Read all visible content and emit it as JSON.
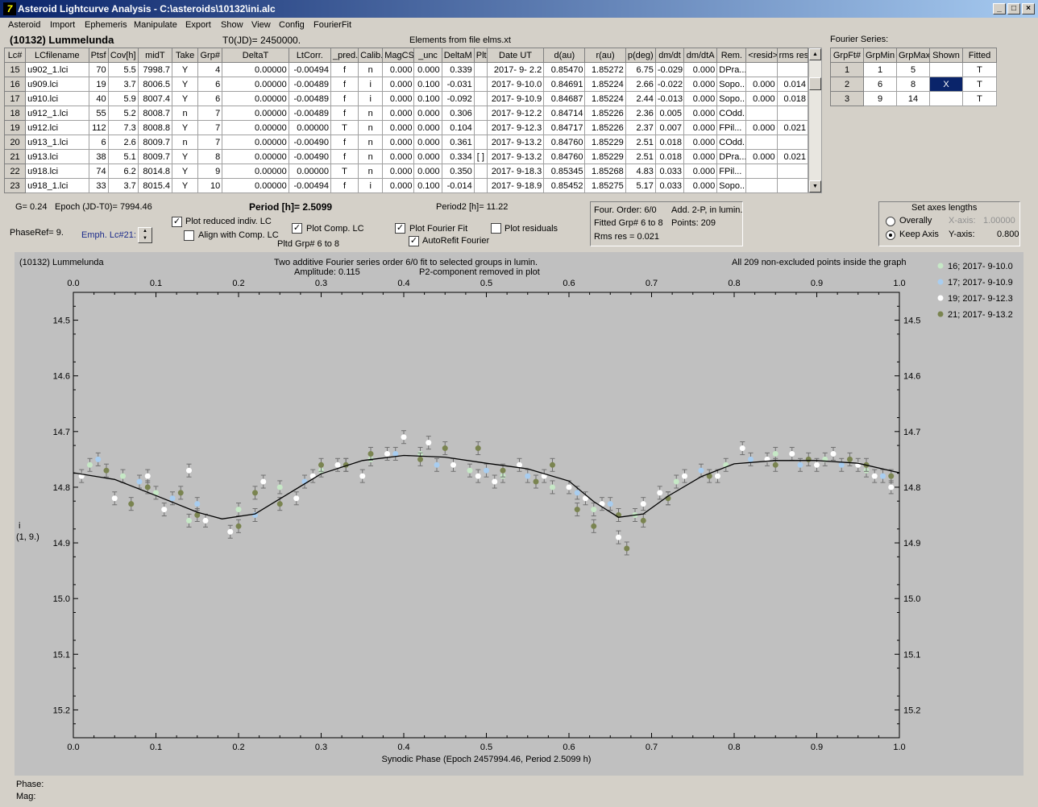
{
  "window": {
    "title": "Asteroid Lightcurve Analysis - C:\\asteroids\\10132\\ini.alc",
    "icon": "7"
  },
  "menu": [
    "Asteroid",
    "Import",
    "Ephemeris",
    "Manipulate",
    "Export",
    "Show",
    "View",
    "Config",
    "FourierFit"
  ],
  "header": {
    "asteroid": "(10132) Lummelunda",
    "t0": "T0(JD)= 2450000.",
    "elements": "Elements from file elms.xt",
    "fourier_series_label": "Fourier Series:"
  },
  "lc_table": {
    "columns": [
      "Lc#",
      "LCfilename",
      "Ptsf",
      "Cov[h]",
      "midT",
      "Take",
      "Grp#",
      "DeltaT",
      "LtCorr.",
      "_pred.",
      "Calib.",
      "MagCS",
      "_unc",
      "DeltaM",
      "Plt",
      "Date UT",
      "d(au)",
      "r(au)",
      "p(deg)",
      "dm/dt",
      "dm/dtA",
      "Rem.",
      "<resid>",
      "rms res"
    ],
    "rows": [
      [
        "15",
        "u902_1.lci",
        "70",
        "5.5",
        "7998.7",
        "Y",
        "4",
        "0.00000",
        "-0.00494",
        "f",
        "n",
        "0.000",
        "0.000",
        "0.339",
        "",
        "2017- 9- 2.2",
        "0.85470",
        "1.85272",
        "6.75",
        "-0.029",
        "0.000",
        "DPra...",
        "",
        ""
      ],
      [
        "16",
        "u909.lci",
        "19",
        "3.7",
        "8006.5",
        "Y",
        "6",
        "0.00000",
        "-0.00489",
        "f",
        "i",
        "0.000",
        "0.100",
        "-0.031",
        "",
        "2017- 9-10.0",
        "0.84691",
        "1.85224",
        "2.66",
        "-0.022",
        "0.000",
        "Sopo...",
        "0.000",
        "0.014"
      ],
      [
        "17",
        "u910.lci",
        "40",
        "5.9",
        "8007.4",
        "Y",
        "6",
        "0.00000",
        "-0.00489",
        "f",
        "i",
        "0.000",
        "0.100",
        "-0.092",
        "",
        "2017- 9-10.9",
        "0.84687",
        "1.85224",
        "2.44",
        "-0.013",
        "0.000",
        "Sopo...",
        "0.000",
        "0.018"
      ],
      [
        "18",
        "u912_1.lci",
        "55",
        "5.2",
        "8008.7",
        "n",
        "7",
        "0.00000",
        "-0.00489",
        "f",
        "n",
        "0.000",
        "0.000",
        "0.306",
        "",
        "2017- 9-12.2",
        "0.84714",
        "1.85226",
        "2.36",
        "0.005",
        "0.000",
        "COdd...",
        "",
        ""
      ],
      [
        "19",
        "u912.lci",
        "112",
        "7.3",
        "8008.8",
        "Y",
        "7",
        "0.00000",
        "0.00000",
        "T",
        "n",
        "0.000",
        "0.000",
        "0.104",
        "",
        "2017- 9-12.3",
        "0.84717",
        "1.85226",
        "2.37",
        "0.007",
        "0.000",
        "FPil...",
        "0.000",
        "0.021"
      ],
      [
        "20",
        "u913_1.lci",
        "6",
        "2.6",
        "8009.7",
        "n",
        "7",
        "0.00000",
        "-0.00490",
        "f",
        "n",
        "0.000",
        "0.000",
        "0.361",
        "",
        "2017- 9-13.2",
        "0.84760",
        "1.85229",
        "2.51",
        "0.018",
        "0.000",
        "COdd...",
        "",
        ""
      ],
      [
        "21",
        "u913.lci",
        "38",
        "5.1",
        "8009.7",
        "Y",
        "8",
        "0.00000",
        "-0.00490",
        "f",
        "n",
        "0.000",
        "0.000",
        "0.334",
        "[ ]",
        "2017- 9-13.2",
        "0.84760",
        "1.85229",
        "2.51",
        "0.018",
        "0.000",
        "DPra...",
        "0.000",
        "0.021"
      ],
      [
        "22",
        "u918.lci",
        "74",
        "6.2",
        "8014.8",
        "Y",
        "9",
        "0.00000",
        "0.00000",
        "T",
        "n",
        "0.000",
        "0.000",
        "0.350",
        "",
        "2017- 9-18.3",
        "0.85345",
        "1.85268",
        "4.83",
        "0.033",
        "0.000",
        "FPil...",
        "",
        ""
      ],
      [
        "23",
        "u918_1.lci",
        "33",
        "3.7",
        "8015.4",
        "Y",
        "10",
        "0.00000",
        "-0.00494",
        "f",
        "i",
        "0.000",
        "0.100",
        "-0.014",
        "",
        "2017- 9-18.9",
        "0.85452",
        "1.85275",
        "5.17",
        "0.033",
        "0.000",
        "Sopo...",
        "",
        ""
      ]
    ]
  },
  "fourier_table": {
    "columns": [
      "GrpFt#",
      "GrpMin",
      "GrpMax",
      "Shown",
      "Fitted"
    ],
    "rows": [
      [
        "1",
        "1",
        "5",
        "",
        "T"
      ],
      [
        "2",
        "6",
        "8",
        "X",
        "T"
      ],
      [
        "3",
        "9",
        "14",
        "",
        "T"
      ]
    ]
  },
  "controls": {
    "g": "G= 0.24",
    "epoch": "Epoch (JD-T0)= 7994.46",
    "period": "Period [h]= 2.5099",
    "period2": "Period2 [h]= 11.22",
    "phaseref": "PhaseRef= 9.",
    "emph": "Emph. Lc#21:",
    "plot_reduced": "Plot reduced indiv. LC",
    "align_comp": "Align with Comp. LC",
    "plot_comp": "Plot Comp. LC",
    "pltd_grp": "Pltd Grp#  6  to   8",
    "plot_fourier": "Plot Fourier Fit",
    "autorefit": "AutoRefit Fourier",
    "plot_residuals": "Plot residuals",
    "check_states": {
      "plot_reduced": true,
      "align_comp": false,
      "plot_comp": true,
      "plot_fourier": true,
      "autorefit": true,
      "plot_residuals": false
    }
  },
  "fit_info": {
    "order": "Four. Order:  6/0",
    "add": "Add. 2-P, in lumin.",
    "fitted": "Fitted Grp# 6 to 8",
    "points": "Points: 209",
    "rms": "Rms res      = 0.021"
  },
  "axes_box": {
    "title": "Set axes lengths",
    "overally": "Overally",
    "keep_axis": "Keep Axis",
    "xaxis_label": "X-axis:",
    "xaxis_value": "1.00000",
    "yaxis_label": "Y-axis:",
    "yaxis_value": "0.800",
    "selected": "Keep Axis"
  },
  "plot": {
    "asteroid": "(10132) Lummelunda",
    "subtitle1": "Two additive Fourier series order 6/0 fit to selected groups in lumin.",
    "subtitle2a": "Amplitude: 0.115",
    "subtitle2b": "P2-component removed in plot",
    "all_points": "All 209 non-excluded points inside the graph",
    "ylabel1": "i",
    "ylabel2": "(1, 9.)"
  },
  "status": {
    "phase": "Phase:",
    "mag": "Mag:"
  },
  "chart_data": {
    "type": "scatter",
    "xlabel": "Synodic Phase (Epoch 2457994.46, Period 2.5099 h)",
    "xlim": [
      0.0,
      1.0
    ],
    "ylim": [
      14.45,
      15.25
    ],
    "y_inverted": true,
    "xticks": [
      "0.0",
      "0.1",
      "0.2",
      "0.3",
      "0.4",
      "0.5",
      "0.6",
      "0.7",
      "0.8",
      "0.9",
      "1.0"
    ],
    "yticks": [
      "14.5",
      "14.6",
      "14.7",
      "14.8",
      "14.9",
      "15.0",
      "15.1",
      "15.2"
    ],
    "legend_position": "top-right",
    "series": [
      {
        "name": "16; 2017- 9-10.0",
        "color": "#c6e8c6",
        "points": [
          [
            0.02,
            14.76
          ],
          [
            0.06,
            14.78
          ],
          [
            0.1,
            14.81
          ],
          [
            0.14,
            14.86
          ],
          [
            0.2,
            14.84
          ],
          [
            0.25,
            14.8
          ],
          [
            0.3,
            14.77
          ],
          [
            0.36,
            14.75
          ],
          [
            0.42,
            14.74
          ],
          [
            0.48,
            14.77
          ],
          [
            0.52,
            14.78
          ],
          [
            0.58,
            14.8
          ],
          [
            0.63,
            14.84
          ],
          [
            0.68,
            14.85
          ],
          [
            0.73,
            14.79
          ],
          [
            0.79,
            14.76
          ],
          [
            0.85,
            14.74
          ],
          [
            0.91,
            14.75
          ],
          [
            0.96,
            14.77
          ]
        ]
      },
      {
        "name": "17; 2017- 9-10.9",
        "color": "#a8cdf0",
        "points": [
          [
            0.03,
            14.75
          ],
          [
            0.08,
            14.79
          ],
          [
            0.12,
            14.82
          ],
          [
            0.15,
            14.83
          ],
          [
            0.22,
            14.85
          ],
          [
            0.28,
            14.79
          ],
          [
            0.33,
            14.76
          ],
          [
            0.39,
            14.74
          ],
          [
            0.44,
            14.76
          ],
          [
            0.5,
            14.77
          ],
          [
            0.55,
            14.78
          ],
          [
            0.61,
            14.81
          ],
          [
            0.65,
            14.83
          ],
          [
            0.72,
            14.82
          ],
          [
            0.76,
            14.77
          ],
          [
            0.82,
            14.75
          ],
          [
            0.88,
            14.76
          ],
          [
            0.93,
            14.76
          ],
          [
            0.98,
            14.78
          ]
        ]
      },
      {
        "name": "19; 2017- 9-12.3",
        "color": "#ffffff",
        "points": [
          [
            0.01,
            14.78
          ],
          [
            0.05,
            14.82
          ],
          [
            0.09,
            14.78
          ],
          [
            0.11,
            14.84
          ],
          [
            0.14,
            14.77
          ],
          [
            0.16,
            14.86
          ],
          [
            0.19,
            14.88
          ],
          [
            0.23,
            14.79
          ],
          [
            0.27,
            14.82
          ],
          [
            0.29,
            14.78
          ],
          [
            0.32,
            14.76
          ],
          [
            0.35,
            14.78
          ],
          [
            0.38,
            14.74
          ],
          [
            0.4,
            14.71
          ],
          [
            0.43,
            14.72
          ],
          [
            0.46,
            14.76
          ],
          [
            0.49,
            14.78
          ],
          [
            0.51,
            14.79
          ],
          [
            0.54,
            14.76
          ],
          [
            0.57,
            14.78
          ],
          [
            0.6,
            14.8
          ],
          [
            0.62,
            14.82
          ],
          [
            0.64,
            14.83
          ],
          [
            0.66,
            14.89
          ],
          [
            0.69,
            14.83
          ],
          [
            0.71,
            14.81
          ],
          [
            0.74,
            14.78
          ],
          [
            0.78,
            14.78
          ],
          [
            0.81,
            14.73
          ],
          [
            0.84,
            14.75
          ],
          [
            0.87,
            14.74
          ],
          [
            0.9,
            14.76
          ],
          [
            0.92,
            14.74
          ],
          [
            0.95,
            14.76
          ],
          [
            0.97,
            14.78
          ],
          [
            0.99,
            14.8
          ]
        ]
      },
      {
        "name": "21; 2017- 9-13.2",
        "color": "#7a8450",
        "points": [
          [
            0.04,
            14.77
          ],
          [
            0.07,
            14.83
          ],
          [
            0.09,
            14.8
          ],
          [
            0.13,
            14.81
          ],
          [
            0.15,
            14.85
          ],
          [
            0.2,
            14.87
          ],
          [
            0.22,
            14.81
          ],
          [
            0.25,
            14.83
          ],
          [
            0.3,
            14.76
          ],
          [
            0.33,
            14.76
          ],
          [
            0.36,
            14.74
          ],
          [
            0.42,
            14.75
          ],
          [
            0.45,
            14.73
          ],
          [
            0.49,
            14.73
          ],
          [
            0.52,
            14.77
          ],
          [
            0.56,
            14.79
          ],
          [
            0.58,
            14.76
          ],
          [
            0.61,
            14.84
          ],
          [
            0.63,
            14.87
          ],
          [
            0.66,
            14.85
          ],
          [
            0.67,
            14.91
          ],
          [
            0.69,
            14.86
          ],
          [
            0.72,
            14.82
          ],
          [
            0.77,
            14.78
          ],
          [
            0.85,
            14.76
          ],
          [
            0.89,
            14.75
          ],
          [
            0.94,
            14.75
          ],
          [
            0.96,
            14.76
          ],
          [
            0.99,
            14.78
          ]
        ]
      }
    ],
    "fit_curve": {
      "name": "Fourier fit",
      "color": "#000000",
      "points": [
        [
          0.0,
          14.774
        ],
        [
          0.05,
          14.786
        ],
        [
          0.1,
          14.815
        ],
        [
          0.15,
          14.845
        ],
        [
          0.18,
          14.857
        ],
        [
          0.22,
          14.848
        ],
        [
          0.26,
          14.812
        ],
        [
          0.3,
          14.776
        ],
        [
          0.35,
          14.752
        ],
        [
          0.4,
          14.743
        ],
        [
          0.45,
          14.746
        ],
        [
          0.5,
          14.757
        ],
        [
          0.55,
          14.767
        ],
        [
          0.6,
          14.789
        ],
        [
          0.63,
          14.826
        ],
        [
          0.66,
          14.854
        ],
        [
          0.69,
          14.848
        ],
        [
          0.72,
          14.816
        ],
        [
          0.76,
          14.781
        ],
        [
          0.8,
          14.758
        ],
        [
          0.85,
          14.752
        ],
        [
          0.9,
          14.752
        ],
        [
          0.95,
          14.757
        ],
        [
          1.0,
          14.774
        ]
      ]
    }
  }
}
